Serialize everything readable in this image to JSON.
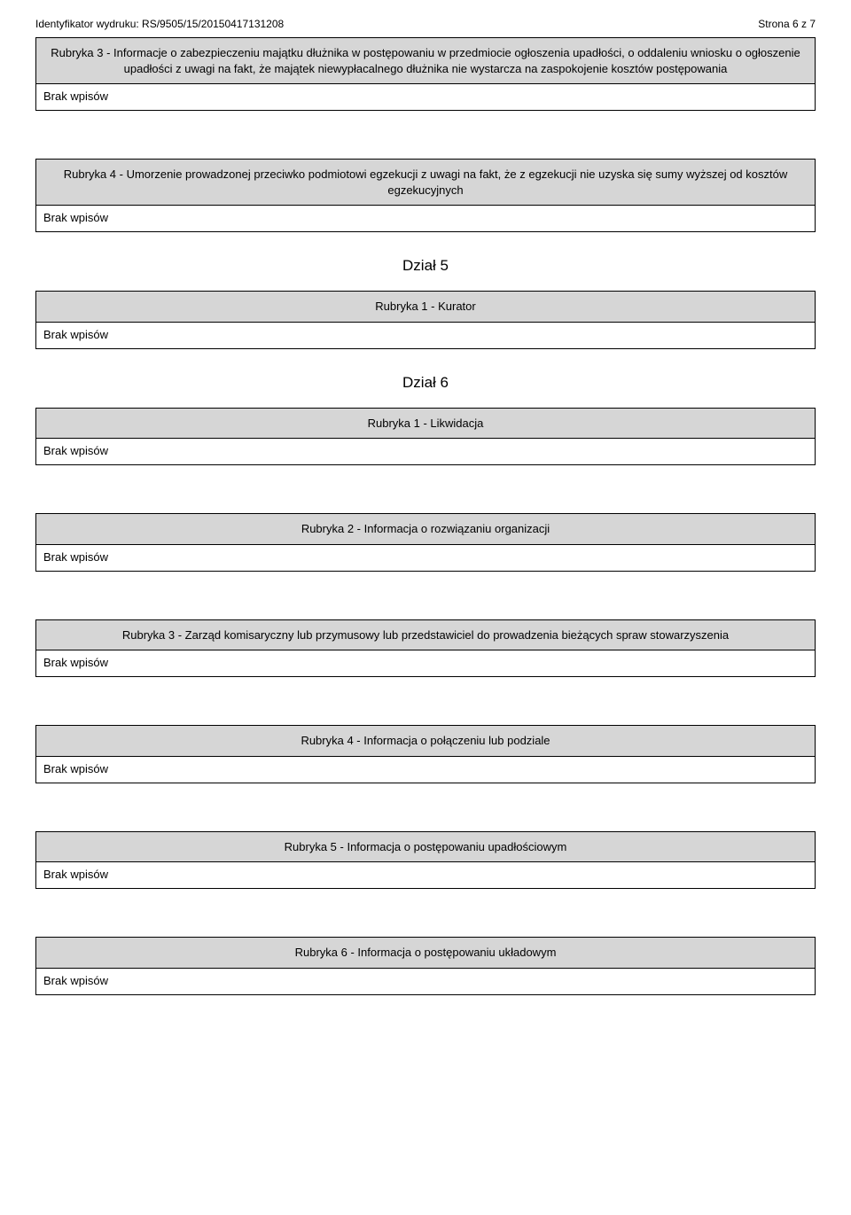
{
  "header": {
    "left": "Identyfikator wydruku: RS/9505/15/20150417131208",
    "right": "Strona 6 z 7"
  },
  "common": {
    "no_entries": "Brak wpisów"
  },
  "sections": [
    {
      "title": "Rubryka 3 - Informacje o zabezpieczeniu majątku dłużnika w postępowaniu w przedmiocie ogłoszenia upadłości, o oddaleniu wniosku o ogłoszenie upadłości z uwagi na fakt, że majątek niewypłacalnego dłużnika nie wystarcza na zaspokojenie kosztów postępowania"
    },
    {
      "title": "Rubryka 4 - Umorzenie prowadzonej przeciwko podmiotowi egzekucji z uwagi na fakt, że z egzekucji nie uzyska się sumy wyższej od kosztów egzekucyjnych"
    },
    {
      "heading": "Dział 5"
    },
    {
      "title": "Rubryka 1 - Kurator"
    },
    {
      "heading": "Dział 6"
    },
    {
      "title": "Rubryka 1 - Likwidacja"
    },
    {
      "title": "Rubryka 2 - Informacja o rozwiązaniu organizacji"
    },
    {
      "title": "Rubryka 3 - Zarząd komisaryczny lub przymusowy lub przedstawiciel do prowadzenia bieżących spraw stowarzyszenia"
    },
    {
      "title": "Rubryka 4 - Informacja o połączeniu lub podziale"
    },
    {
      "title": "Rubryka 5 - Informacja o postępowaniu upadłościowym"
    },
    {
      "title": "Rubryka 6 - Informacja o postępowaniu układowym"
    }
  ]
}
